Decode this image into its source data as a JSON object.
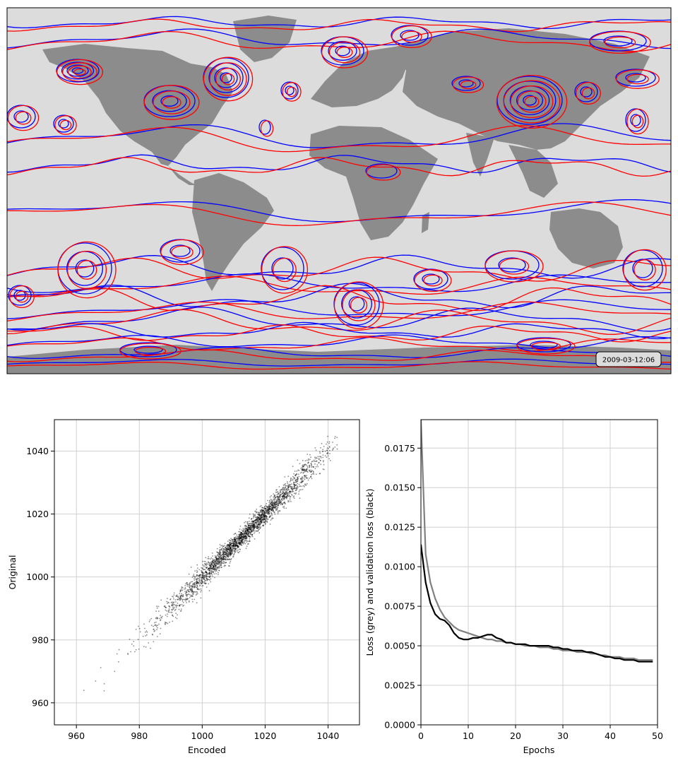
{
  "map": {
    "timestamp": "2009-03-12:06",
    "background_color": "#dcdcdc",
    "land_color": "#8c8c8c",
    "contour_colors": {
      "original": "#ff0000",
      "encoded": "#0000ff"
    }
  },
  "chart_data": [
    {
      "type": "scatter",
      "title": "",
      "xlabel": "Encoded",
      "ylabel": "Original",
      "xlim": [
        953,
        1050
      ],
      "ylim": [
        953,
        1050
      ],
      "xticks": [
        960,
        980,
        1000,
        1020,
        1040
      ],
      "yticks": [
        960,
        980,
        1000,
        1020,
        1040
      ],
      "grid": true,
      "point_color": "#000000",
      "relation": "points cluster tightly along the identity line from about 962 to 1043 (Original ≈ Encoded)",
      "x_range_of_points": [
        962,
        1043
      ]
    },
    {
      "type": "line",
      "title": "",
      "xlabel": "Epochs",
      "ylabel": "Loss (grey) and validation loss (black)",
      "xlim": [
        0,
        50
      ],
      "ylim": [
        0,
        0.0193
      ],
      "xticks": [
        0,
        10,
        20,
        30,
        40,
        50
      ],
      "yticks": [
        "0.0000",
        "0.0025",
        "0.0050",
        "0.0075",
        "0.0100",
        "0.0125",
        "0.0150",
        "0.0175"
      ],
      "grid": true,
      "x": [
        0,
        1,
        2,
        3,
        4,
        5,
        6,
        7,
        8,
        9,
        10,
        11,
        12,
        13,
        14,
        15,
        16,
        17,
        18,
        19,
        20,
        21,
        22,
        23,
        24,
        25,
        26,
        27,
        28,
        29,
        30,
        31,
        32,
        33,
        34,
        35,
        36,
        37,
        38,
        39,
        40,
        41,
        42,
        43,
        44,
        45,
        46,
        47,
        48,
        49
      ],
      "series": [
        {
          "color": "#808080",
          "values": [
            0.0193,
            0.0108,
            0.009,
            0.008,
            0.0073,
            0.0068,
            0.0065,
            0.0062,
            0.006,
            0.0059,
            0.0058,
            0.0057,
            0.0056,
            0.0055,
            0.0054,
            0.0054,
            0.0053,
            0.0053,
            0.0052,
            0.0052,
            0.0051,
            0.0051,
            0.005,
            0.005,
            0.005,
            0.0049,
            0.0049,
            0.0049,
            0.0048,
            0.0048,
            0.0047,
            0.0047,
            0.0047,
            0.0046,
            0.0046,
            0.0046,
            0.0045,
            0.0045,
            0.0044,
            0.0044,
            0.0043,
            0.0043,
            0.0043,
            0.0042,
            0.0042,
            0.0042,
            0.0041,
            0.0041,
            0.0041,
            0.0041
          ]
        },
        {
          "color": "#000000",
          "values": [
            0.0114,
            0.009,
            0.0077,
            0.007,
            0.0067,
            0.0066,
            0.0063,
            0.0058,
            0.0055,
            0.0054,
            0.0054,
            0.0055,
            0.0055,
            0.0056,
            0.0057,
            0.0057,
            0.0055,
            0.0054,
            0.0052,
            0.0052,
            0.0051,
            0.0051,
            0.0051,
            0.005,
            0.005,
            0.005,
            0.005,
            0.005,
            0.0049,
            0.0049,
            0.0048,
            0.0048,
            0.0047,
            0.0047,
            0.0047,
            0.0046,
            0.0046,
            0.0045,
            0.0044,
            0.0043,
            0.0043,
            0.0042,
            0.0042,
            0.0041,
            0.0041,
            0.0041,
            0.004,
            0.004,
            0.004,
            0.004
          ]
        }
      ]
    }
  ]
}
